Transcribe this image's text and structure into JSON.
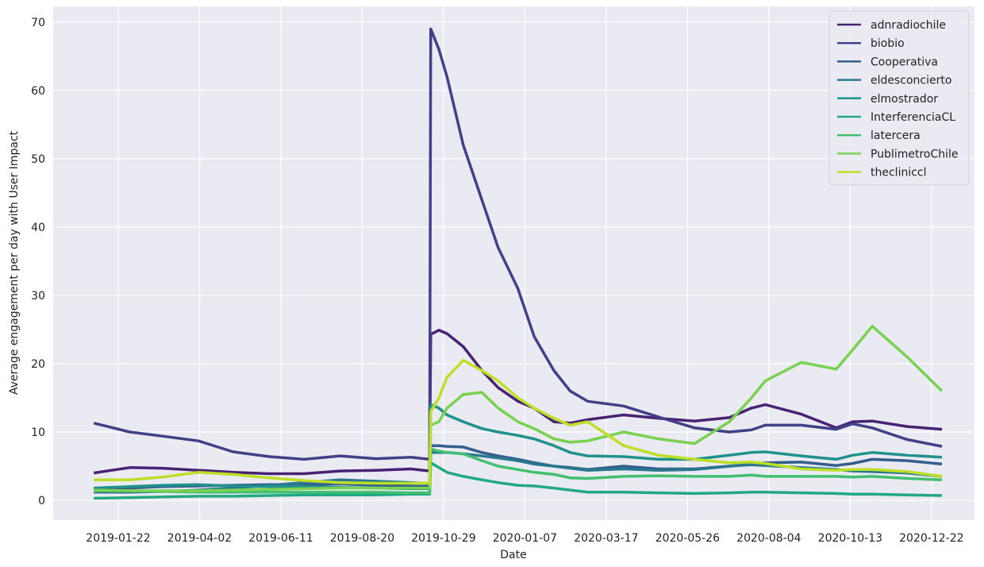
{
  "chart_data": {
    "type": "line",
    "xlabel": "Date",
    "ylabel": "Average engagement per day with User Impact",
    "x": [
      "2019-01-01",
      "2019-02-01",
      "2019-03-01",
      "2019-04-01",
      "2019-05-01",
      "2019-06-01",
      "2019-07-01",
      "2019-08-01",
      "2019-09-01",
      "2019-10-01",
      "2019-10-17",
      "2019-10-18",
      "2019-10-25",
      "2019-11-01",
      "2019-11-15",
      "2019-12-01",
      "2019-12-15",
      "2020-01-01",
      "2020-01-15",
      "2020-02-01",
      "2020-02-15",
      "2020-03-01",
      "2020-04-01",
      "2020-05-01",
      "2020-06-01",
      "2020-07-01",
      "2020-07-20",
      "2020-08-01",
      "2020-09-01",
      "2020-10-01",
      "2020-10-15",
      "2020-11-01",
      "2020-12-01",
      "2020-12-31"
    ],
    "xlim": [
      "2018-11-27",
      "2021-01-28"
    ],
    "xticks": [
      "2019-01-22",
      "2019-04-02",
      "2019-06-11",
      "2019-08-20",
      "2019-10-29",
      "2020-01-07",
      "2020-03-17",
      "2020-05-26",
      "2020-08-04",
      "2020-10-13",
      "2020-12-22"
    ],
    "ylim": [
      -2.9,
      72.3
    ],
    "yticks": [
      0,
      10,
      20,
      30,
      40,
      50,
      60,
      70
    ],
    "grid": true,
    "legend": "upper right",
    "series": [
      {
        "name": "adnradiochile",
        "color": "#482374",
        "values": [
          4,
          4.8,
          4.7,
          4.4,
          4.1,
          3.9,
          3.9,
          4.3,
          4.4,
          4.6,
          4.3,
          24.3,
          24.9,
          24.4,
          22.5,
          19,
          16.5,
          14.5,
          13.5,
          11.5,
          11.3,
          11.8,
          12.5,
          12,
          11.6,
          12.1,
          13.5,
          14,
          12.6,
          10.6,
          11.5,
          11.6,
          10.8,
          10.4
        ]
      },
      {
        "name": "biobio",
        "color": "#424086",
        "values": [
          11.3,
          10,
          9.4,
          8.7,
          7.1,
          6.4,
          6,
          6.5,
          6.1,
          6.3,
          6,
          69,
          66,
          62,
          52,
          44,
          37,
          31,
          24,
          19,
          16,
          14.5,
          13.8,
          12.2,
          10.6,
          10,
          10.3,
          11,
          11,
          10.4,
          11.2,
          10.6,
          8.9,
          7.9
        ]
      },
      {
        "name": "Cooperativa",
        "color": "#355e8d",
        "values": [
          1.6,
          1.8,
          2,
          2.1,
          2.2,
          2.3,
          2.3,
          2.4,
          2.2,
          2.1,
          2,
          8,
          8,
          7.9,
          7.8,
          7,
          6.5,
          6,
          5.5,
          5,
          4.8,
          4.5,
          5,
          4.6,
          4.6,
          5,
          5.3,
          5.5,
          5.6,
          5.1,
          5.4,
          6,
          5.8,
          5.3
        ]
      },
      {
        "name": "eldesconcierto",
        "color": "#2a788e",
        "values": [
          1.2,
          1.2,
          1.3,
          1.5,
          1.8,
          2.2,
          2.6,
          3,
          2.8,
          2.6,
          2.4,
          7,
          7,
          7,
          6.8,
          6.5,
          6.2,
          5.8,
          5.3,
          5,
          4.7,
          4.4,
          4.6,
          4.4,
          4.5,
          5,
          5.2,
          5.1,
          4.8,
          4.5,
          4.3,
          4.2,
          4,
          3.5
        ]
      },
      {
        "name": "elmostrador",
        "color": "#21918c",
        "values": [
          1.8,
          2,
          2.2,
          2.3,
          2.1,
          2,
          2,
          1.9,
          1.8,
          1.7,
          1.7,
          14,
          13.5,
          12.5,
          11.5,
          10.5,
          10,
          9.5,
          9,
          8,
          7,
          6.5,
          6.4,
          6,
          6,
          6.6,
          7,
          7.1,
          6.5,
          6,
          6.6,
          7,
          6.6,
          6.3
        ]
      },
      {
        "name": "InterferenciaCL",
        "color": "#22a884",
        "values": [
          0.3,
          0.4,
          0.5,
          0.6,
          0.6,
          0.7,
          0.8,
          0.8,
          0.8,
          0.9,
          0.9,
          5.5,
          4.8,
          4.1,
          3.5,
          3,
          2.6,
          2.2,
          2.1,
          1.8,
          1.5,
          1.2,
          1.2,
          1.1,
          1,
          1.1,
          1.2,
          1.2,
          1.1,
          1,
          0.9,
          0.9,
          0.8,
          0.7
        ]
      },
      {
        "name": "latercera",
        "color": "#43bf71",
        "values": [
          1.4,
          1.4,
          1.3,
          1.2,
          1.2,
          1.2,
          1.2,
          1.2,
          1.2,
          1.1,
          1.1,
          7.5,
          7.2,
          7,
          6.8,
          5.8,
          5,
          4.5,
          4.1,
          3.8,
          3.3,
          3.2,
          3.5,
          3.6,
          3.5,
          3.5,
          3.7,
          3.5,
          3.5,
          3.5,
          3.4,
          3.5,
          3.2,
          3
        ]
      },
      {
        "name": "PublimetroChile",
        "color": "#7ad151",
        "values": [
          1.5,
          1.4,
          1.4,
          1.4,
          1.5,
          1.6,
          1.7,
          1.8,
          1.8,
          1.8,
          1.8,
          11,
          11.5,
          13.5,
          15.5,
          15.8,
          13.5,
          11.5,
          10.5,
          9,
          8.5,
          8.7,
          10,
          9,
          8.3,
          11.5,
          15,
          17.5,
          20.2,
          19.2,
          22,
          25.5,
          21,
          16
        ]
      },
      {
        "name": "thecliniccl",
        "color": "#bcdf27",
        "values": [
          3,
          3,
          3.4,
          4.1,
          3.8,
          3.3,
          2.9,
          2.6,
          2.5,
          2.5,
          2.5,
          13,
          15,
          18,
          20.5,
          19,
          17.5,
          15,
          13.5,
          12,
          11,
          11.5,
          8,
          6.6,
          6,
          5.5,
          5.6,
          5.4,
          4.6,
          4.4,
          4.5,
          4.5,
          4.2,
          3.5
        ]
      }
    ]
  }
}
